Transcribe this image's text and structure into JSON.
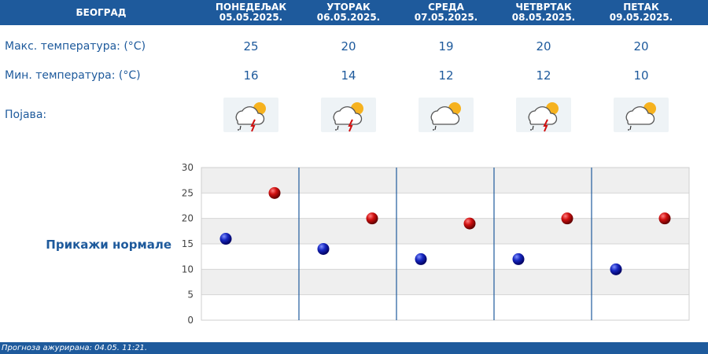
{
  "header": {
    "city": "БЕОГРАД",
    "days": [
      {
        "name": "ПОНЕДЕЉАК",
        "date": "05.05.2025."
      },
      {
        "name": "УТОРАК",
        "date": "06.05.2025."
      },
      {
        "name": "СРЕДА",
        "date": "07.05.2025."
      },
      {
        "name": "ЧЕТВРТАК",
        "date": "08.05.2025."
      },
      {
        "name": "ПЕТАК",
        "date": "09.05.2025."
      }
    ]
  },
  "rows": {
    "max_label": "Макс. температура: (°C)",
    "min_label": "Мин. температура: (°C)",
    "phenomena_label": "Појава:",
    "max_values": [
      "25",
      "20",
      "19",
      "20",
      "20"
    ],
    "min_values": [
      "16",
      "14",
      "12",
      "12",
      "10"
    ],
    "icons": [
      "partly-cloudy-rain-thunder-icon",
      "partly-cloudy-rain-thunder-icon",
      "partly-cloudy-rain-icon",
      "partly-cloudy-rain-thunder-icon",
      "partly-cloudy-rain-icon"
    ]
  },
  "normals_link": "Прикажи нормале",
  "footer": "Прогноза ажурирана:  04.05.  11:21.",
  "colors": {
    "header": "#1e5a9c",
    "max_point": "#c00000",
    "min_point": "#1020b0"
  },
  "chart_data": {
    "type": "scatter",
    "y_ticks": [
      "30",
      "25",
      "20",
      "15",
      "10",
      "5",
      "0"
    ],
    "ylim": [
      0,
      30
    ],
    "categories": [
      "05.05.2025.",
      "06.05.2025.",
      "07.05.2025.",
      "08.05.2025.",
      "09.05.2025."
    ],
    "series": [
      {
        "values": [
          16,
          14,
          12,
          12,
          10
        ],
        "color": "#1020b0"
      },
      {
        "values": [
          25,
          20,
          19,
          20,
          20
        ],
        "color": "#c00000"
      }
    ],
    "grid": true
  }
}
